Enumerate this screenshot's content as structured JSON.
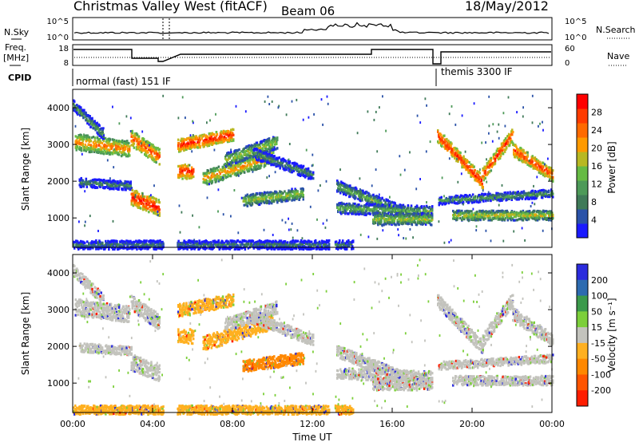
{
  "title": {
    "left": "Christmas Valley West (fitACF)",
    "beam": "Beam 06",
    "date": "18/May/2012"
  },
  "noise_panel": {
    "left_label": "N.Sky",
    "right_label": "N.Search",
    "left_ticks": [
      "10^5",
      "10^0"
    ],
    "right_ticks": [
      "10^5",
      "10^0"
    ]
  },
  "freq_panel": {
    "left_label_1": "Freq.",
    "left_label_2": "[MHz]",
    "left_ticks": [
      "18",
      "8"
    ],
    "right_ticks": [
      "60",
      "0"
    ],
    "right_label": "Nave"
  },
  "cpid": {
    "label": "CPID",
    "modes": [
      "normal (fast) 151 IF",
      "themis 3300 IF"
    ]
  },
  "colors": {
    "power_scale": [
      "#1a1aff",
      "#2a52a8",
      "#3f7a58",
      "#4d9a58",
      "#66bb44",
      "#b8b822",
      "#ff9a00",
      "#ff6a00",
      "#ff3b00",
      "#ff0000"
    ],
    "velocity_scale": [
      "#2b2bdd",
      "#2d6bb0",
      "#3b9a4b",
      "#7ccf3a",
      "#c3c3bd",
      "#ffb020",
      "#ff8800",
      "#ff5500",
      "#ff1d00"
    ]
  },
  "chart_data": [
    {
      "type": "heatmap",
      "panel": "power",
      "ylabel": "Slant Range [km]",
      "yticks": [
        "1000",
        "2000",
        "3000",
        "4000"
      ],
      "ylim": [
        200,
        4500
      ],
      "xlim": [
        0,
        24
      ],
      "colorbar_label": "Power [dB]",
      "colorbar_ticks": [
        "4",
        "8",
        "12",
        "16",
        "20",
        "24",
        "28"
      ],
      "colorbar_range": [
        0,
        30
      ],
      "gaps_hours": [
        [
          4.5,
          5.2
        ],
        [
          12.8,
          13.1
        ],
        [
          18.0,
          18.2
        ]
      ]
    },
    {
      "type": "heatmap",
      "panel": "velocity",
      "ylabel": "Slant Range [km]",
      "yticks": [
        "1000",
        "2000",
        "3000",
        "4000"
      ],
      "ylim": [
        200,
        4500
      ],
      "xlim": [
        0,
        24
      ],
      "xticks": [
        "00:00",
        "04:00",
        "08:00",
        "12:00",
        "16:00",
        "20:00",
        "00:00"
      ],
      "xlabel": "Time UT",
      "colorbar_label": "Velocity [m s⁻¹]",
      "colorbar_ticks": [
        "200",
        "100",
        "50",
        "15",
        "-15",
        "-50",
        "-100",
        "-200"
      ],
      "colorbar_range": [
        -250,
        250
      ]
    }
  ]
}
